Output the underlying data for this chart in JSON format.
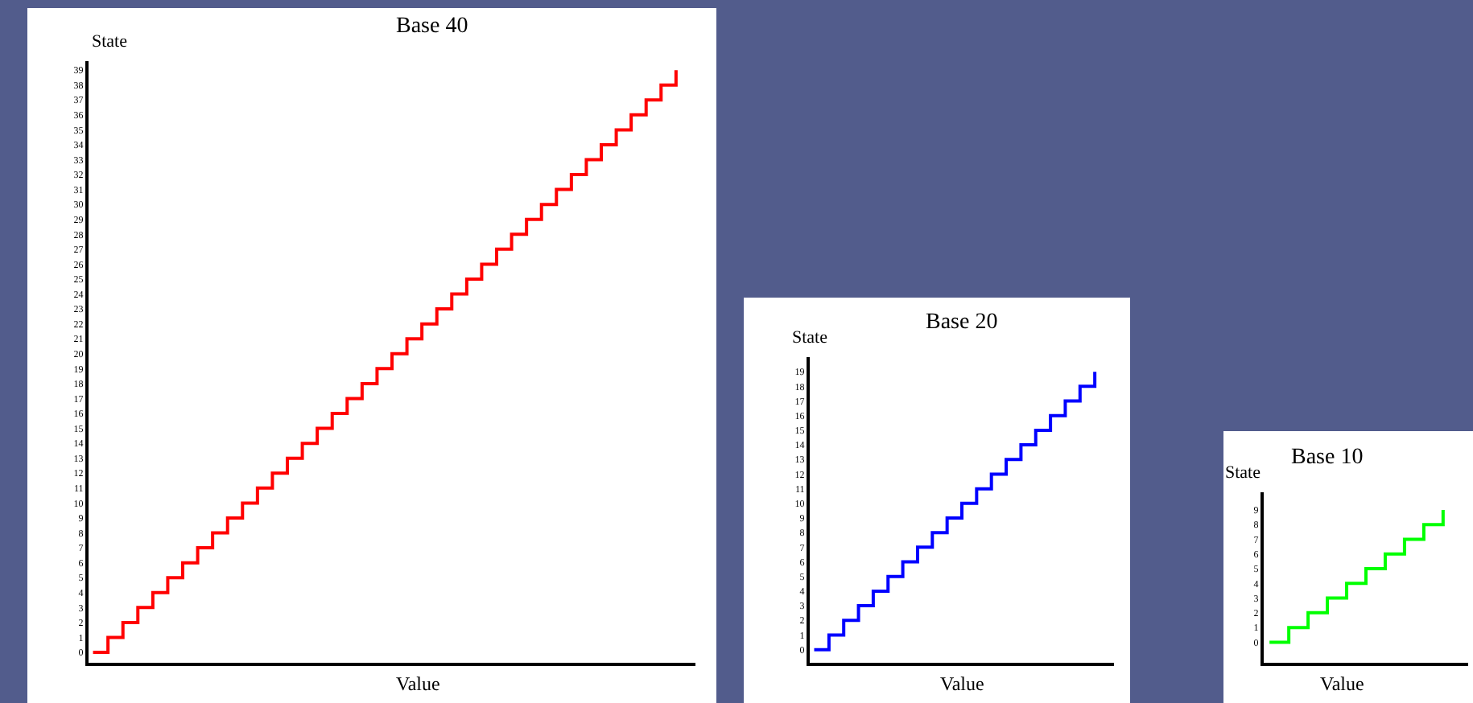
{
  "chart_data": [
    {
      "type": "step",
      "title": "Base 40",
      "xlabel": "Value",
      "ylabel": "State",
      "categories": [
        null,
        null,
        null,
        null,
        null,
        null,
        null,
        null,
        null,
        null,
        null,
        null,
        null,
        null,
        null,
        null,
        null,
        null,
        null,
        null,
        null,
        null,
        null,
        null,
        null,
        null,
        null,
        null,
        null,
        null,
        null,
        null,
        null,
        null,
        null,
        null,
        null,
        null,
        null,
        null
      ],
      "series": [
        {
          "color": "#ff0000",
          "values": [
            0,
            1,
            2,
            3,
            4,
            5,
            6,
            7,
            8,
            9,
            10,
            11,
            12,
            13,
            14,
            15,
            16,
            17,
            18,
            19,
            20,
            21,
            22,
            23,
            24,
            25,
            26,
            27,
            28,
            29,
            30,
            31,
            32,
            33,
            34,
            35,
            36,
            37,
            38,
            39
          ]
        }
      ],
      "ylim": [
        -0.7,
        39.6
      ],
      "yticks": [
        0,
        1,
        2,
        3,
        4,
        5,
        6,
        7,
        8,
        9,
        10,
        11,
        12,
        13,
        14,
        15,
        16,
        17,
        18,
        19,
        20,
        21,
        22,
        23,
        24,
        25,
        26,
        27,
        28,
        29,
        30,
        31,
        32,
        33,
        34,
        35,
        36,
        37,
        38,
        39
      ]
    },
    {
      "type": "step",
      "title": "Base 20",
      "xlabel": "Value",
      "ylabel": "State",
      "categories": [
        null,
        null,
        null,
        null,
        null,
        null,
        null,
        null,
        null,
        null,
        null,
        null,
        null,
        null,
        null,
        null,
        null,
        null,
        null,
        null
      ],
      "series": [
        {
          "color": "#0000ff",
          "values": [
            0,
            1,
            2,
            3,
            4,
            5,
            6,
            7,
            8,
            9,
            10,
            11,
            12,
            13,
            14,
            15,
            16,
            17,
            18,
            19
          ]
        }
      ],
      "ylim": [
        -0.9,
        20
      ],
      "yticks": [
        0,
        1,
        2,
        3,
        4,
        5,
        6,
        7,
        8,
        9,
        10,
        11,
        12,
        13,
        14,
        15,
        16,
        17,
        18,
        19
      ]
    },
    {
      "type": "step",
      "title": "Base 10",
      "xlabel": "Value",
      "ylabel": "State",
      "categories": [
        null,
        null,
        null,
        null,
        null,
        null,
        null,
        null,
        null,
        null
      ],
      "series": [
        {
          "color": "#00ff00",
          "values": [
            0,
            1,
            2,
            3,
            4,
            5,
            6,
            7,
            8,
            9
          ]
        }
      ],
      "ylim": [
        -1.4,
        10.2
      ],
      "yticks": [
        0,
        1,
        2,
        3,
        4,
        5,
        6,
        7,
        8,
        9
      ]
    }
  ]
}
